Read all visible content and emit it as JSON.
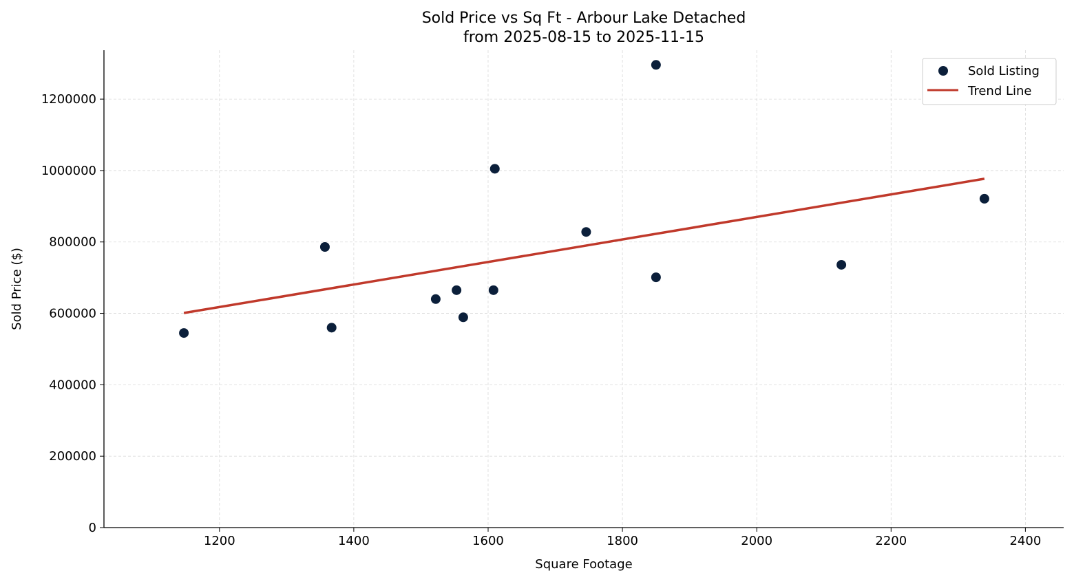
{
  "chart_data": {
    "type": "scatter",
    "title": "Sold Price vs Sq Ft - Arbour Lake Detached",
    "subtitle": "from 2025-08-15 to 2025-11-15",
    "xlabel": "Square Footage",
    "ylabel": "Sold Price ($)",
    "xlim": [
      1028,
      2457
    ],
    "ylim": [
      0,
      1337000
    ],
    "xticks": [
      1200,
      1400,
      1600,
      1800,
      2000,
      2200,
      2400
    ],
    "yticks": [
      0,
      200000,
      400000,
      600000,
      800000,
      1000000,
      1200000
    ],
    "grid": true,
    "legend_position": "top-right",
    "series": [
      {
        "name": "Sold Listing",
        "type": "scatter",
        "color": "#0b1f3a",
        "x": [
          1147,
          1357,
          1367,
          1522,
          1553,
          1563,
          1608,
          1610,
          1746,
          1850,
          1850,
          2126,
          2339
        ],
        "y": [
          545000,
          786000,
          560000,
          640000,
          665000,
          589000,
          665000,
          1005000,
          828000,
          1296000,
          701000,
          736000,
          921000
        ]
      },
      {
        "name": "Trend Line",
        "type": "line",
        "color": "#c0392b",
        "x": [
          1147,
          2339
        ],
        "y": [
          601000,
          977000
        ]
      }
    ]
  }
}
